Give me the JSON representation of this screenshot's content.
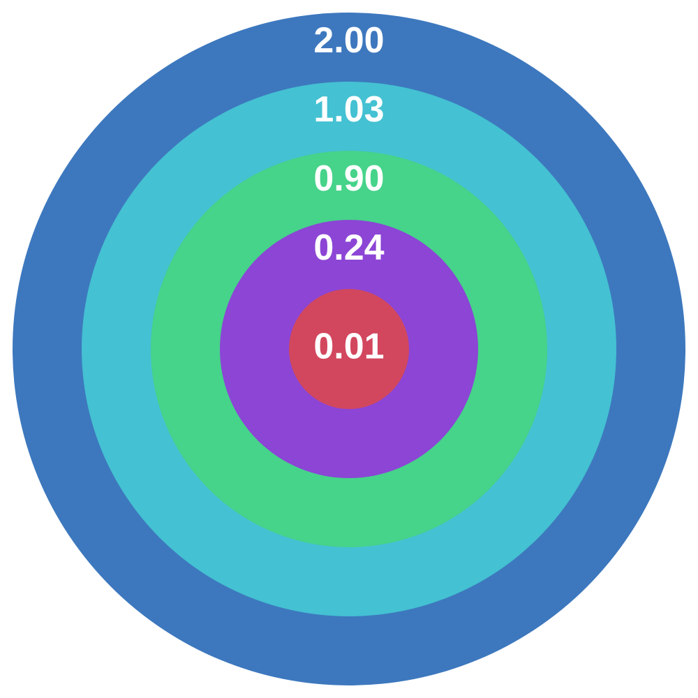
{
  "chart_data": {
    "type": "concentric",
    "values": [
      2.0,
      1.03,
      0.9,
      0.24,
      0.01
    ],
    "value_labels": [
      "2.00",
      "1.03",
      "0.90",
      "0.24",
      "0.01"
    ],
    "colors": [
      "#3d78be",
      "#44c1d2",
      "#46d38a",
      "#8c45d5",
      "#d2475e"
    ]
  }
}
